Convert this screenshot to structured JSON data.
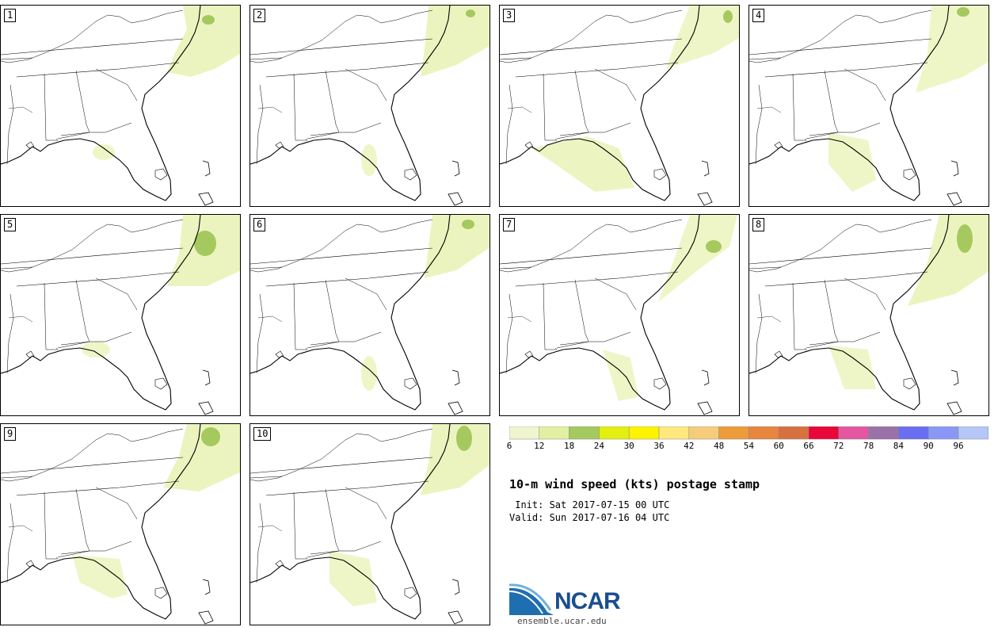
{
  "panels": [
    {
      "label": "1"
    },
    {
      "label": "2"
    },
    {
      "label": "3"
    },
    {
      "label": "4"
    },
    {
      "label": "5"
    },
    {
      "label": "6"
    },
    {
      "label": "7"
    },
    {
      "label": "8"
    },
    {
      "label": "9"
    },
    {
      "label": "10"
    }
  ],
  "colorbar": {
    "colors": [
      "#f0f5d0",
      "#e2f0a2",
      "#a5c95e",
      "#e2ef10",
      "#fff300",
      "#ffe97e",
      "#f5cd7a",
      "#ee9b3c",
      "#e8853e",
      "#d87140",
      "#e8063a",
      "#e457a0",
      "#9a72a9",
      "#6a6ef0",
      "#8a98f5",
      "#b6c7f7"
    ],
    "labels": [
      "6",
      "12",
      "18",
      "24",
      "30",
      "36",
      "42",
      "48",
      "54",
      "60",
      "66",
      "72",
      "78",
      "84",
      "90",
      "96"
    ]
  },
  "title": "10-m wind speed (kts) postage stamp",
  "init_line": " Init: Sat 2017-07-15 00 UTC",
  "valid_line": "Valid: Sun 2017-07-16 04 UTC",
  "logo": {
    "name": "NCAR",
    "url": "ensemble.ucar.edu"
  }
}
